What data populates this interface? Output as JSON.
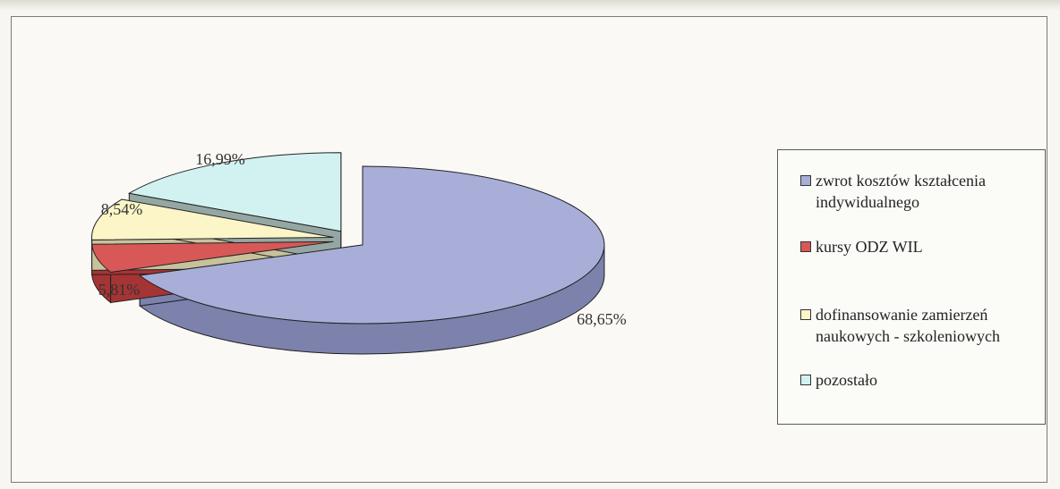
{
  "chart_data": {
    "type": "pie",
    "title": "",
    "slices": [
      {
        "label": "zwrot kosztów kształcenia indywidualnego",
        "value": 68.65,
        "value_label": "68,65%",
        "color": "#a9aed8",
        "side_color": "#7c82ac"
      },
      {
        "label": "kursy ODZ WIL",
        "value": 5.81,
        "value_label": "5,81%",
        "color": "#d85858",
        "side_color": "#a53434"
      },
      {
        "label": "dofinansowanie zamierzeń naukowych - szkoleniowych",
        "value": 8.54,
        "value_label": "8,54%",
        "color": "#fbf5c7",
        "side_color": "#c8c29c"
      },
      {
        "label": "pozostało",
        "value": 16.99,
        "value_label": "16,99%",
        "color": "#d2f2f2",
        "side_color": "#95a7a2"
      }
    ],
    "legend_position": "right",
    "exploded": true,
    "three_d": true
  }
}
